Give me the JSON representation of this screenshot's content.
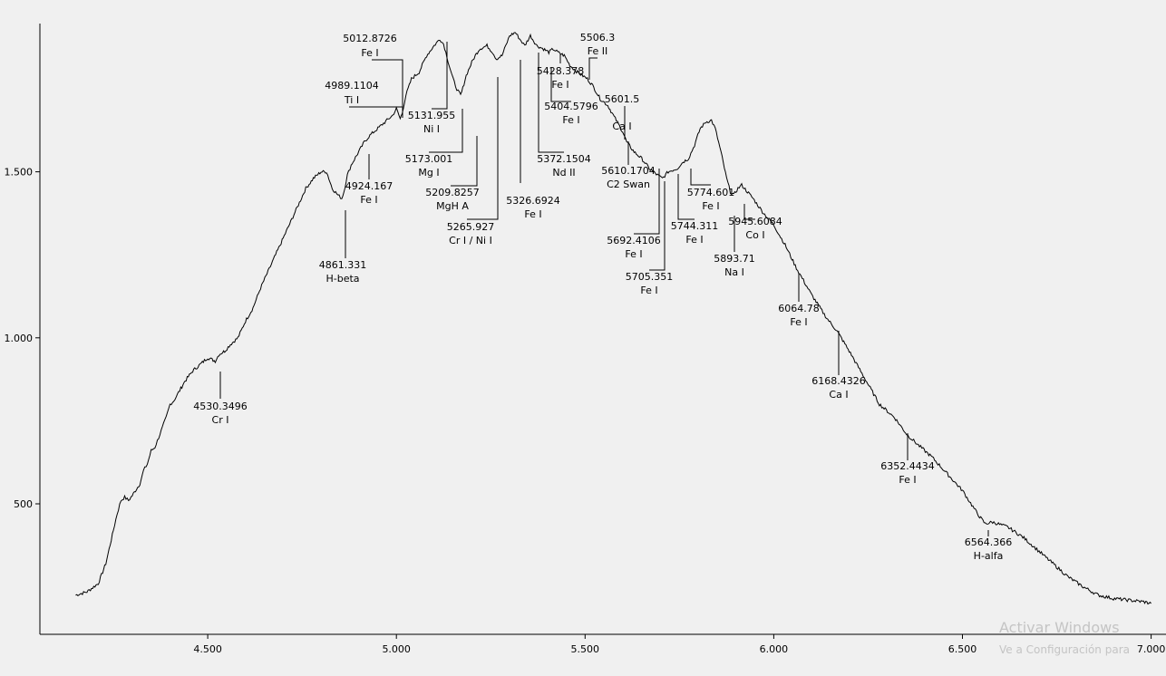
{
  "chart_data": {
    "type": "line",
    "title": "",
    "xlabel": "",
    "ylabel": "",
    "xlim": [
      4080,
      7010
    ],
    "ylim": [
      180,
      1980
    ],
    "x_ticks": [
      4500,
      5000,
      5500,
      6000,
      6500,
      7000
    ],
    "x_tick_labels": [
      "4.500",
      "5.000",
      "5.500",
      "6.000",
      "6.500",
      "7.000"
    ],
    "y_ticks": [
      500,
      1000,
      1500
    ],
    "y_tick_labels": [
      "500",
      "1.000",
      "1.500"
    ],
    "grid": false,
    "series": [
      {
        "x": [
          4150,
          4180,
          4210,
          4230,
          4250,
          4260,
          4270,
          4280,
          4290,
          4300,
          4320,
          4330,
          4340,
          4350,
          4360,
          4370,
          4380,
          4390,
          4400,
          4410,
          4420,
          4440,
          4460,
          4480,
          4500,
          4520,
          4530,
          4545,
          4560,
          4580,
          4600,
          4620,
          4640,
          4660,
          4680,
          4700,
          4720,
          4740,
          4760,
          4780,
          4800,
          4815,
          4830,
          4845,
          4855,
          4861,
          4870,
          4880,
          4900,
          4915,
          4930,
          4960,
          4990,
          5000,
          5010,
          5015,
          5025,
          5040,
          5060,
          5080,
          5100,
          5115,
          5125,
          5131,
          5140,
          5150,
          5160,
          5170,
          5173,
          5185,
          5200,
          5209,
          5220,
          5240,
          5255,
          5265,
          5280,
          5290,
          5300,
          5315,
          5327,
          5340,
          5355,
          5372,
          5390,
          5404,
          5415,
          5428,
          5445,
          5460,
          5480,
          5506,
          5520,
          5540,
          5560,
          5580,
          5600,
          5610,
          5630,
          5650,
          5670,
          5692,
          5705,
          5720,
          5744,
          5760,
          5774,
          5790,
          5805,
          5820,
          5835,
          5845,
          5860,
          5875,
          5885,
          5894,
          5905,
          5915,
          5930,
          5945,
          5970,
          6000,
          6030,
          6060,
          6100,
          6140,
          6168,
          6200,
          6240,
          6280,
          6320,
          6352,
          6380,
          6420,
          6460,
          6500,
          6540,
          6560,
          6580,
          6620,
          6660,
          6700,
          6740,
          6780,
          6820,
          6860,
          6900,
          6940,
          6980,
          7000
        ],
        "y": [
          225,
          235,
          260,
          320,
          420,
          470,
          510,
          520,
          510,
          525,
          560,
          600,
          620,
          660,
          670,
          700,
          730,
          760,
          800,
          810,
          830,
          870,
          900,
          920,
          940,
          930,
          950,
          960,
          980,
          1000,
          1050,
          1090,
          1150,
          1200,
          1250,
          1300,
          1350,
          1400,
          1450,
          1480,
          1500,
          1500,
          1450,
          1430,
          1420,
          1440,
          1490,
          1520,
          1560,
          1590,
          1610,
          1640,
          1670,
          1690,
          1660,
          1675,
          1730,
          1780,
          1800,
          1850,
          1880,
          1900,
          1885,
          1860,
          1820,
          1780,
          1750,
          1730,
          1740,
          1790,
          1830,
          1850,
          1870,
          1880,
          1860,
          1840,
          1850,
          1880,
          1910,
          1920,
          1900,
          1880,
          1910,
          1880,
          1870,
          1860,
          1870,
          1860,
          1850,
          1820,
          1800,
          1780,
          1760,
          1720,
          1700,
          1660,
          1620,
          1590,
          1560,
          1540,
          1510,
          1490,
          1480,
          1500,
          1510,
          1530,
          1540,
          1580,
          1630,
          1650,
          1655,
          1630,
          1560,
          1480,
          1440,
          1430,
          1450,
          1460,
          1440,
          1420,
          1380,
          1340,
          1280,
          1210,
          1130,
          1060,
          1020,
          960,
          880,
          800,
          760,
          710,
          680,
          640,
          590,
          540,
          470,
          440,
          445,
          430,
          400,
          360,
          320,
          280,
          250,
          225,
          215,
          210,
          205,
          200
        ]
      }
    ],
    "annotations": [
      {
        "wavelength": "4530.3496",
        "element": "Cr I"
      },
      {
        "wavelength": "4861.331",
        "element": "H-beta"
      },
      {
        "wavelength": "4924.167",
        "element": "Fe I"
      },
      {
        "wavelength": "4989.1104",
        "element": "Ti I"
      },
      {
        "wavelength": "5012.8726",
        "element": "Fe I"
      },
      {
        "wavelength": "5131.955",
        "element": "Ni I"
      },
      {
        "wavelength": "5173.001",
        "element": "Mg I"
      },
      {
        "wavelength": "5209.8257",
        "element": "MgH A"
      },
      {
        "wavelength": "5265.927",
        "element": "Cr I / Ni I"
      },
      {
        "wavelength": "5326.6924",
        "element": "Fe I"
      },
      {
        "wavelength": "5372.1504",
        "element": "Nd II"
      },
      {
        "wavelength": "5404.5796",
        "element": "Fe I"
      },
      {
        "wavelength": "5428.378",
        "element": "Fe I"
      },
      {
        "wavelength": "5506.3",
        "element": "Fe II"
      },
      {
        "wavelength": "5601.5",
        "element": "Ca I"
      },
      {
        "wavelength": "5610.1704",
        "element": "C2 Swan"
      },
      {
        "wavelength": "5692.4106",
        "element": "Fe I"
      },
      {
        "wavelength": "5705.351",
        "element": "Fe I"
      },
      {
        "wavelength": "5744.311",
        "element": "Fe I"
      },
      {
        "wavelength": "5774.601",
        "element": "Fe I"
      },
      {
        "wavelength": "5893.71",
        "element": "Na I"
      },
      {
        "wavelength": "5945.6084",
        "element": "Co I"
      },
      {
        "wavelength": "6064.78",
        "element": "Fe I"
      },
      {
        "wavelength": "6168.4326",
        "element": "Ca I"
      },
      {
        "wavelength": "6352.4434",
        "element": "Fe I"
      },
      {
        "wavelength": "6564.366",
        "element": "H-alfa"
      }
    ]
  },
  "watermark": {
    "line1": "Activar Windows",
    "line2": "Ve a Configuración para"
  }
}
